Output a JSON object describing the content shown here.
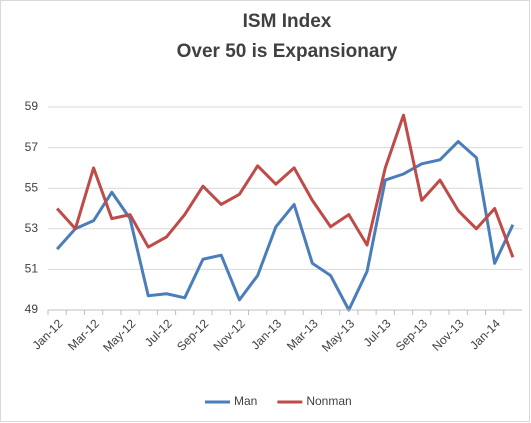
{
  "chart_data": {
    "type": "line",
    "title": "ISM Index",
    "subtitle": "Over 50 is Expansionary",
    "categories": [
      "Jan-12",
      null,
      "Mar-12",
      null,
      "May-12",
      null,
      "Jul-12",
      null,
      "Sep-12",
      null,
      "Nov-12",
      null,
      "Jan-13",
      null,
      "Mar-13",
      null,
      "May-13",
      null,
      "Jul-13",
      null,
      "Sep-13",
      null,
      "Nov-13",
      null,
      "Jan-14",
      null
    ],
    "series": [
      {
        "name": "Man",
        "color": "#4a7ebb",
        "values": [
          52.0,
          53.0,
          53.4,
          54.8,
          53.5,
          49.7,
          49.8,
          49.6,
          51.5,
          51.7,
          49.5,
          50.7,
          53.1,
          54.2,
          51.3,
          50.7,
          49.0,
          50.9,
          55.4,
          55.7,
          56.2,
          56.4,
          57.3,
          56.5,
          51.3,
          53.2
        ]
      },
      {
        "name": "Nonman",
        "color": "#be4b48",
        "values": [
          54.0,
          53.0,
          56.0,
          53.5,
          53.7,
          52.1,
          52.6,
          53.7,
          55.1,
          54.2,
          54.7,
          56.1,
          55.2,
          56.0,
          54.4,
          53.1,
          53.7,
          52.2,
          56.0,
          58.6,
          54.4,
          55.4,
          53.9,
          53.0,
          54.0,
          51.6
        ]
      }
    ],
    "ylim": [
      49,
      59
    ],
    "yticks": [
      49,
      51,
      53,
      55,
      57,
      59
    ],
    "grid": true,
    "legend": "bottom"
  }
}
